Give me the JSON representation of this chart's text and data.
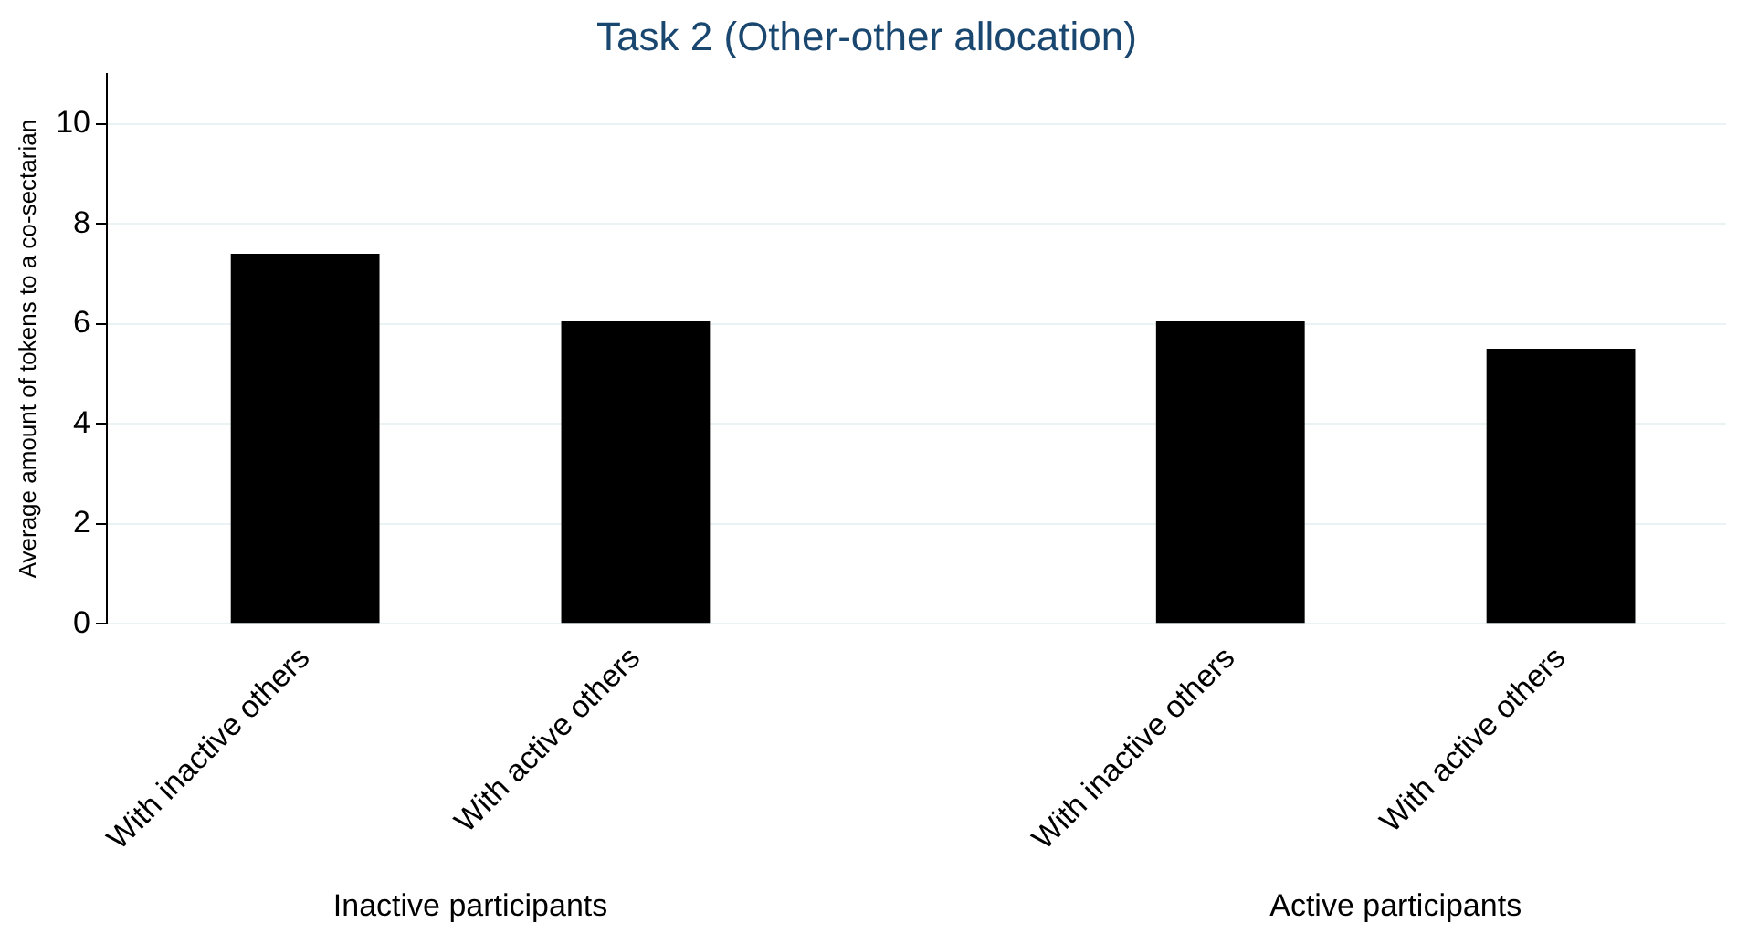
{
  "chart_data": {
    "type": "bar",
    "title": "Task 2 (Other-other allocation)",
    "ylabel": "Average amount of tokens to a co-sectarian",
    "categories": [
      "With inactive others",
      "With active others",
      "With inactive others",
      "With active others"
    ],
    "values": [
      7.4,
      6.05,
      6.05,
      5.5
    ],
    "color": "#000000",
    "ylim": [
      0,
      11
    ],
    "yticks": [
      0,
      2,
      4,
      6,
      8,
      10
    ],
    "grid": "y",
    "annotations": [
      "Inactive participants",
      "Active participants"
    ]
  }
}
